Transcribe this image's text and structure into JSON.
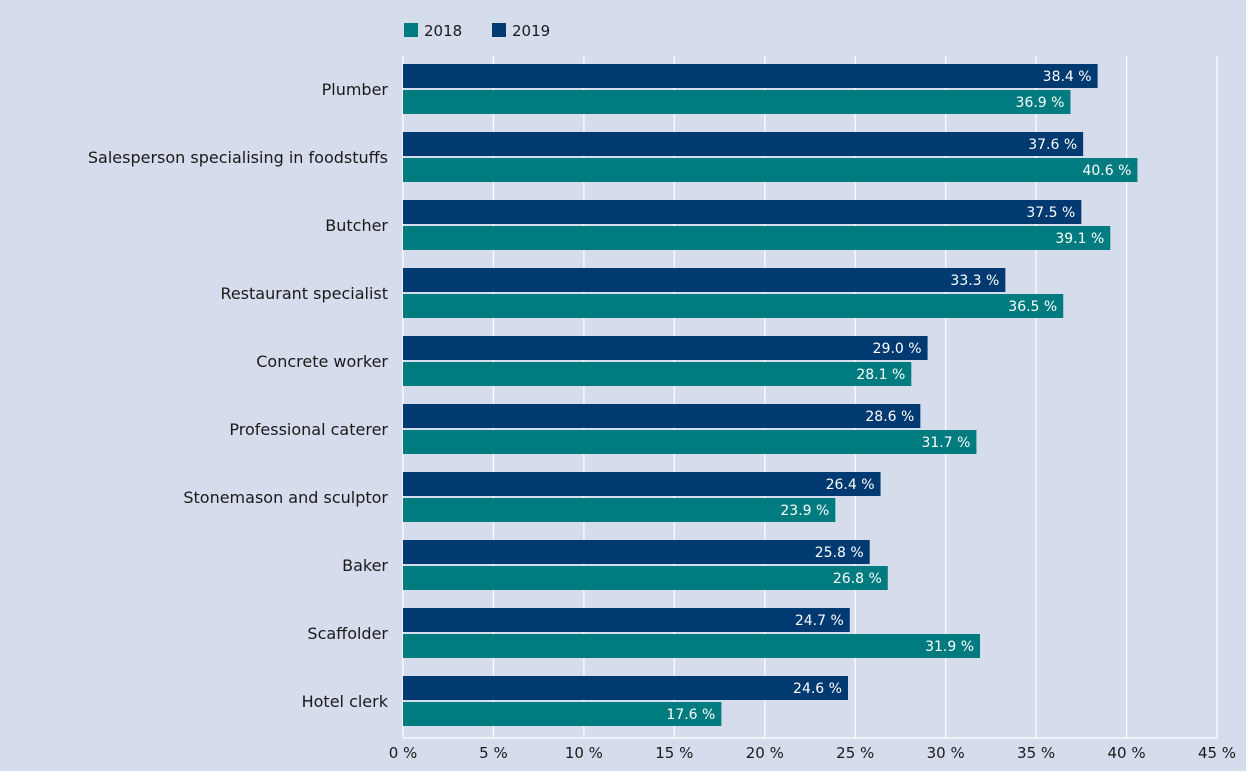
{
  "colors": {
    "background": "#d5dceb",
    "series_2018": "#007b7f",
    "series_2019": "#003a70",
    "grid": "#ffffff"
  },
  "chart_data": {
    "type": "bar",
    "orientation": "horizontal",
    "title": "",
    "xlabel": "",
    "ylabel": "",
    "xlim": [
      0,
      45
    ],
    "x_ticks": [
      0,
      5,
      10,
      15,
      20,
      25,
      30,
      35,
      40,
      45
    ],
    "x_tick_labels": [
      "0 %",
      "5 %",
      "10 %",
      "15 %",
      "20 %",
      "25 %",
      "30 %",
      "35 %",
      "40 %",
      "45 %"
    ],
    "grid": true,
    "legend_position": "top-left",
    "categories": [
      "Plumber",
      "Salesperson specialising in foodstuffs",
      "Butcher",
      "Restaurant specialist",
      "Concrete worker",
      "Professional caterer",
      "Stonemason and sculptor",
      "Baker",
      "Scaffolder",
      "Hotel clerk"
    ],
    "series": [
      {
        "name": "2018",
        "color": "#007b7f",
        "values": [
          36.9,
          40.6,
          39.1,
          36.5,
          28.1,
          31.7,
          23.9,
          26.8,
          31.9,
          17.6
        ],
        "labels": [
          "36.9 %",
          "40.6 %",
          "39.1 %",
          "36.5 %",
          "28.1 %",
          "31.7 %",
          "23.9 %",
          "26.8 %",
          "31.9 %",
          "17.6 %"
        ]
      },
      {
        "name": "2019",
        "color": "#003a70",
        "values": [
          38.4,
          37.6,
          37.5,
          33.3,
          29.0,
          28.6,
          26.4,
          25.8,
          24.7,
          24.6
        ],
        "labels": [
          "38.4 %",
          "37.6 %",
          "37.5 %",
          "33.3 %",
          "29.0 %",
          "28.6 %",
          "26.4 %",
          "25.8 %",
          "24.7 %",
          "24.6 %"
        ]
      }
    ]
  }
}
